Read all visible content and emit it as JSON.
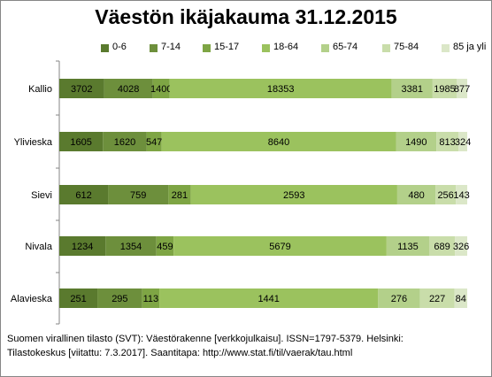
{
  "chart_data": {
    "type": "bar",
    "orientation": "horizontal",
    "stacking": "percent",
    "title": "Väestön ikäjakauma 31.12.2015",
    "categories": [
      "Kallio",
      "Ylivieska",
      "Sievi",
      "Nivala",
      "Alavieska"
    ],
    "series": [
      {
        "name": "0-6",
        "color": "#5a7a2e",
        "values": [
          3702,
          1605,
          612,
          1234,
          251
        ]
      },
      {
        "name": "7-14",
        "color": "#6d8f3c",
        "values": [
          4028,
          1620,
          759,
          1354,
          295
        ]
      },
      {
        "name": "15-17",
        "color": "#7ea544",
        "values": [
          1400,
          547,
          281,
          459,
          113
        ]
      },
      {
        "name": "18-64",
        "color": "#9bc25e",
        "values": [
          18353,
          8640,
          2593,
          5679,
          1441
        ]
      },
      {
        "name": "65-74",
        "color": "#b3d08a",
        "values": [
          3381,
          1490,
          480,
          1135,
          276
        ]
      },
      {
        "name": "75-84",
        "color": "#c9ddaa",
        "values": [
          1985,
          813,
          256,
          689,
          227
        ]
      },
      {
        "name": "85 ja yli",
        "color": "#dbe7c8",
        "values": [
          877,
          324,
          143,
          326,
          84
        ]
      }
    ],
    "grid": false,
    "legend_position": "top",
    "data_labels": true
  },
  "source": {
    "line1": "Suomen virallinen tilasto (SVT): Väestörakenne [verkkojulkaisu]. ISSN=1797-5379. Helsinki:",
    "line2": "Tilastokeskus [viitattu: 7.3.2017]. Saantitapa: http://www.stat.fi/til/vaerak/tau.html"
  }
}
